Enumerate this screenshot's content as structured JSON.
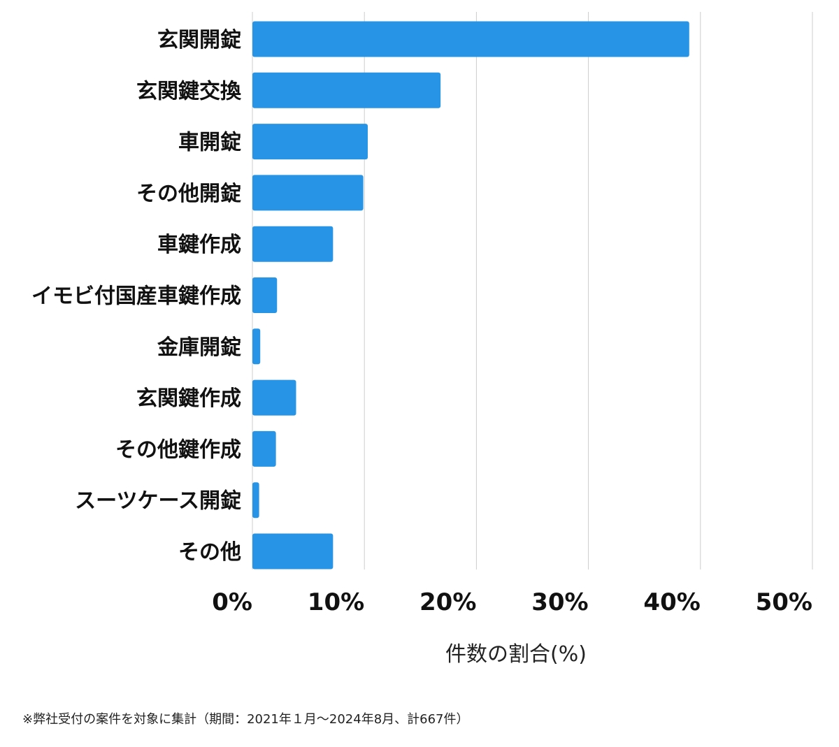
{
  "chart_data": {
    "type": "bar",
    "orientation": "horizontal",
    "categories": [
      "玄関開錠",
      "玄関鍵交換",
      "車開錠",
      "その他開錠",
      "車鍵作成",
      "イモビ付国産車鍵作成",
      "金庫開錠",
      "玄関鍵作成",
      "その他鍵作成",
      "スーツケース開錠",
      "その他"
    ],
    "values": [
      39.0,
      16.8,
      10.3,
      9.9,
      7.2,
      2.2,
      0.7,
      3.9,
      2.1,
      0.6,
      7.2
    ],
    "xticks": [
      0,
      10,
      20,
      30,
      40,
      50
    ],
    "xtick_labels": [
      "0%",
      "10%",
      "20%",
      "30%",
      "40%",
      "50%"
    ],
    "xlim": [
      0,
      50
    ],
    "xlabel": "件数の割合(%)",
    "ylabel": "",
    "grid": "vertical",
    "bar_color": "#2794e5",
    "grid_color": "#cccccc"
  },
  "footnote": "※弊社受付の案件を対象に集計（期間：2021年１月〜2024年8月、計667件）"
}
